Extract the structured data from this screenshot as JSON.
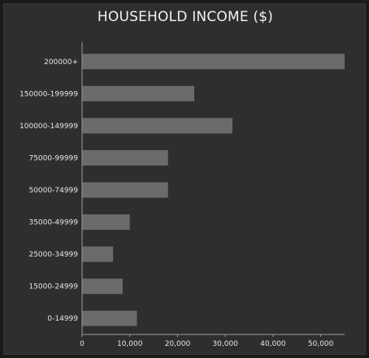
{
  "chart_data": {
    "type": "bar",
    "orientation": "horizontal",
    "title": "HOUSEHOLD INCOME ($)",
    "categories": [
      "200000+",
      "150000-199999",
      "100000-149999",
      "75000-99999",
      "50000-74999",
      "35000-49999",
      "25000-34999",
      "15000-24999",
      "0-14999"
    ],
    "values": [
      55000,
      23500,
      31500,
      18000,
      18000,
      10000,
      6500,
      8500,
      11500
    ],
    "xlim": [
      0,
      55000
    ],
    "xticks": [
      0,
      10000,
      20000,
      30000,
      40000,
      50000
    ],
    "xtick_labels": [
      "0",
      "10,000",
      "20,000",
      "30,000",
      "40,000",
      "50,000"
    ],
    "grid": false,
    "colors": {
      "background": "#2e2e2e",
      "bar": "#6b6b6b",
      "axis": "#9a9a9a",
      "text": "#e6e6e6"
    }
  }
}
